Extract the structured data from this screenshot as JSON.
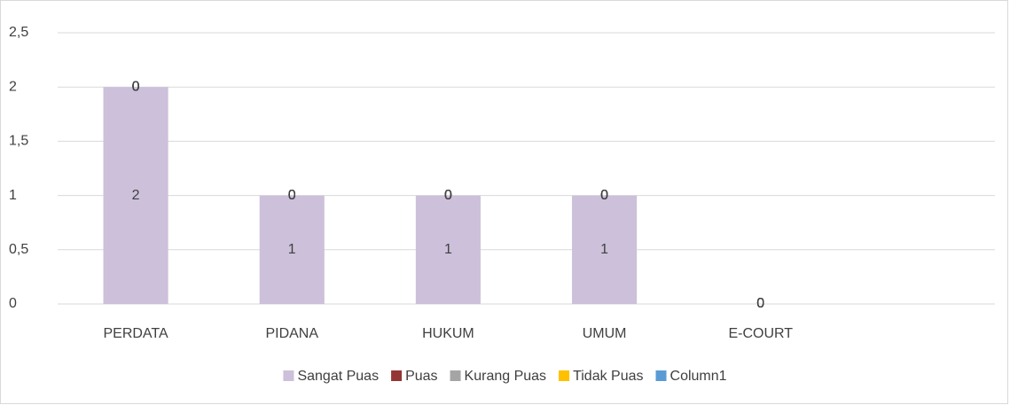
{
  "chart_data": {
    "type": "stacked_bar",
    "categories": [
      "PERDATA",
      "PIDANA",
      "HUKUM",
      "UMUM",
      "E-COURT",
      null
    ],
    "series": [
      {
        "name": "Sangat Puas",
        "color": "#ccc0da",
        "values": [
          2,
          1,
          1,
          1,
          0,
          null
        ]
      },
      {
        "name": "Puas",
        "color": "#943634",
        "values": [
          0,
          0,
          0,
          0,
          0,
          null
        ]
      },
      {
        "name": "Kurang Puas",
        "color": "#a5a5a5",
        "values": [
          0,
          0,
          0,
          0,
          0,
          null
        ]
      },
      {
        "name": "Tidak Puas",
        "color": "#ffc000",
        "values": [
          0,
          0,
          0,
          0,
          0,
          null
        ]
      },
      {
        "name": "Column1",
        "color": "#5b9bd5",
        "values": [
          0,
          0,
          0,
          0,
          0,
          null
        ]
      }
    ],
    "ylim": [
      0,
      2.5
    ],
    "yticks": [
      0,
      {
        "value": 0.5,
        "label": "0,5"
      },
      1,
      {
        "value": 1.5,
        "label": "1,5"
      },
      2,
      {
        "value": 2.5,
        "label": "2,5"
      }
    ],
    "grid": true,
    "legend": "bottom"
  }
}
